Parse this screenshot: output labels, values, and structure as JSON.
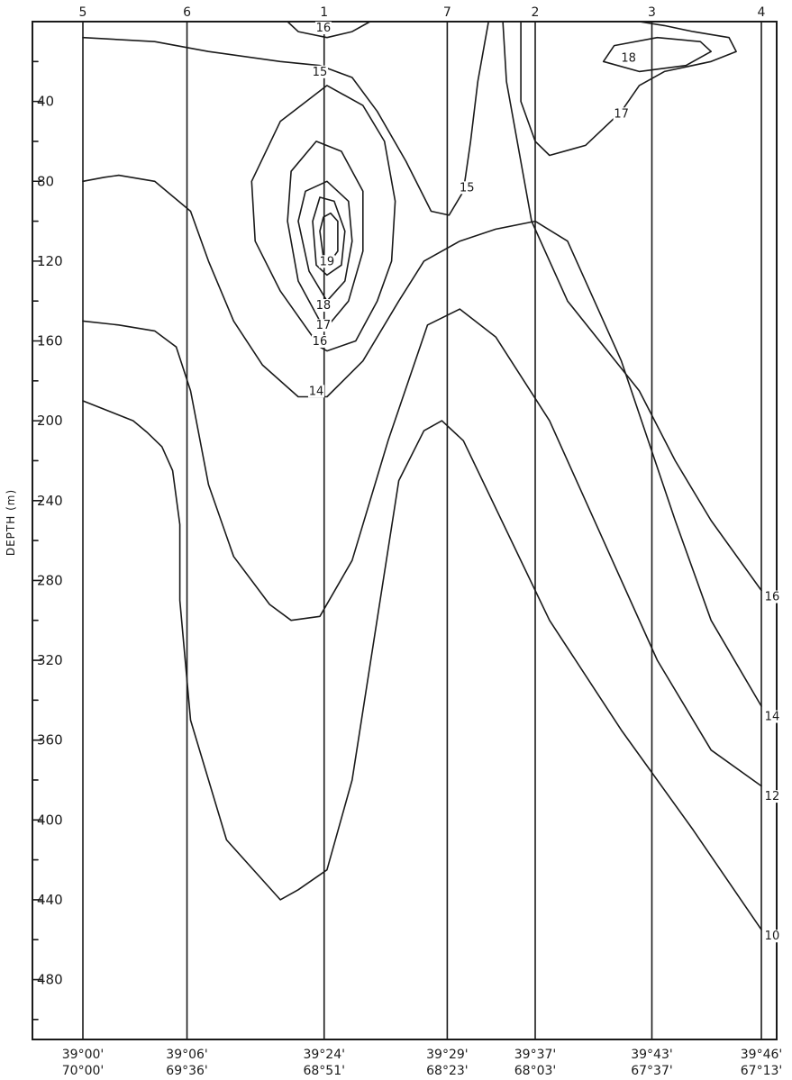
{
  "chart_data": {
    "type": "contour",
    "ylabel": "DEPTH (m)",
    "ylim": [
      0,
      510
    ],
    "yticks_labeled": [
      40,
      80,
      120,
      160,
      200,
      240,
      280,
      320,
      360,
      400,
      440,
      480
    ],
    "yticks_minor_step": 20,
    "stations": [
      {
        "id": "5",
        "lat": "39°00'",
        "lon": "70°00'",
        "xs": 0
      },
      {
        "id": "6",
        "lat": "39°06'",
        "lon": "69°36'",
        "xs": 0.29
      },
      {
        "id": "1",
        "lat": "39°24'",
        "lon": "68°51'",
        "xs": 0.672
      },
      {
        "id": "7",
        "lat": "39°29'",
        "lon": "68°23'",
        "xs": 1.015
      },
      {
        "id": "2",
        "lat": "39°37'",
        "lon": "68°03'",
        "xs": 1.26
      },
      {
        "id": "3",
        "lat": "39°43'",
        "lon": "67°37'",
        "xs": 1.585
      },
      {
        "id": "4",
        "lat": "39°46'",
        "lon": "67°13'",
        "xs": 1.89
      }
    ],
    "top_station_order": [
      "5",
      "6",
      "1",
      "7",
      "2",
      "3",
      "4"
    ],
    "isotherms": [
      {
        "label": "10",
        "points": [
          [
            0,
            190
          ],
          [
            0.14,
            200
          ],
          [
            0.18,
            206
          ],
          [
            0.22,
            213
          ],
          [
            0.25,
            225
          ],
          [
            0.27,
            252
          ],
          [
            0.27,
            290
          ],
          [
            0.3,
            350
          ],
          [
            0.4,
            410
          ],
          [
            0.55,
            440
          ],
          [
            0.6,
            435
          ],
          [
            0.68,
            425
          ],
          [
            0.75,
            380
          ],
          [
            0.88,
            230
          ],
          [
            0.95,
            205
          ],
          [
            1.0,
            200
          ],
          [
            1.06,
            210
          ],
          [
            1.3,
            300
          ],
          [
            1.5,
            355
          ],
          [
            1.7,
            405
          ],
          [
            1.89,
            455
          ]
        ]
      },
      {
        "label": "12",
        "points": [
          [
            0,
            150
          ],
          [
            0.1,
            152
          ],
          [
            0.2,
            155
          ],
          [
            0.26,
            163
          ],
          [
            0.3,
            185
          ],
          [
            0.35,
            232
          ],
          [
            0.42,
            268
          ],
          [
            0.52,
            292
          ],
          [
            0.58,
            300
          ],
          [
            0.66,
            298
          ],
          [
            0.75,
            270
          ],
          [
            0.85,
            210
          ],
          [
            0.96,
            152
          ],
          [
            1.05,
            144
          ],
          [
            1.15,
            158
          ],
          [
            1.3,
            200
          ],
          [
            1.45,
            260
          ],
          [
            1.6,
            320
          ],
          [
            1.75,
            365
          ],
          [
            1.89,
            383
          ]
        ]
      },
      {
        "label": "14",
        "points": [
          [
            0,
            80
          ],
          [
            0.06,
            78
          ],
          [
            0.1,
            77
          ],
          [
            0.2,
            80
          ],
          [
            0.3,
            95
          ],
          [
            0.35,
            120
          ],
          [
            0.42,
            150
          ],
          [
            0.5,
            172
          ],
          [
            0.6,
            188
          ],
          [
            0.68,
            188
          ],
          [
            0.78,
            170
          ],
          [
            0.88,
            140
          ],
          [
            0.95,
            120
          ],
          [
            1.05,
            110
          ],
          [
            1.15,
            104
          ],
          [
            1.26,
            100
          ],
          [
            1.35,
            110
          ],
          [
            1.5,
            170
          ],
          [
            1.65,
            250
          ],
          [
            1.75,
            300
          ],
          [
            1.89,
            343
          ]
        ]
      },
      {
        "label": "14",
        "points": [
          [
            0.48,
            110
          ],
          [
            0.55,
            135
          ],
          [
            0.66,
            163
          ],
          [
            0.68,
            165
          ],
          [
            0.76,
            160
          ],
          [
            0.82,
            140
          ],
          [
            0.86,
            120
          ],
          [
            0.87,
            90
          ],
          [
            0.84,
            60
          ],
          [
            0.78,
            42
          ],
          [
            0.68,
            32
          ],
          [
            0.55,
            50
          ],
          [
            0.47,
            80
          ],
          [
            0.48,
            110
          ]
        ],
        "closed": true
      },
      {
        "label": "16",
        "points": [
          [
            0.57,
            100
          ],
          [
            0.6,
            130
          ],
          [
            0.66,
            150
          ],
          [
            0.68,
            153
          ],
          [
            0.74,
            140
          ],
          [
            0.78,
            115
          ],
          [
            0.78,
            85
          ],
          [
            0.72,
            65
          ],
          [
            0.65,
            60
          ],
          [
            0.58,
            75
          ],
          [
            0.57,
            100
          ]
        ],
        "closed": true
      },
      {
        "label": "17",
        "points": [
          [
            0.6,
            100
          ],
          [
            0.63,
            125
          ],
          [
            0.68,
            140
          ],
          [
            0.73,
            130
          ],
          [
            0.75,
            110
          ],
          [
            0.74,
            90
          ],
          [
            0.68,
            80
          ],
          [
            0.62,
            85
          ],
          [
            0.6,
            100
          ]
        ],
        "closed": true
      },
      {
        "label": "18",
        "points": [
          [
            0.64,
            100
          ],
          [
            0.65,
            122
          ],
          [
            0.68,
            127
          ],
          [
            0.72,
            122
          ],
          [
            0.73,
            105
          ],
          [
            0.7,
            90
          ],
          [
            0.66,
            88
          ],
          [
            0.64,
            100
          ]
        ],
        "closed": true
      },
      {
        "label": "19",
        "points": [
          [
            0.66,
            105
          ],
          [
            0.67,
            118
          ],
          [
            0.69,
            120
          ],
          [
            0.71,
            115
          ],
          [
            0.71,
            100
          ],
          [
            0.69,
            96
          ],
          [
            0.67,
            98
          ],
          [
            0.66,
            105
          ]
        ],
        "closed": true
      },
      {
        "label": "15",
        "points": [
          [
            0,
            8
          ],
          [
            0.2,
            10
          ],
          [
            0.35,
            15
          ],
          [
            0.55,
            20
          ],
          [
            0.66,
            22
          ],
          [
            0.75,
            28
          ],
          [
            0.82,
            45
          ],
          [
            0.9,
            70
          ],
          [
            0.97,
            95
          ],
          [
            1.02,
            97
          ],
          [
            1.06,
            85
          ],
          [
            1.08,
            60
          ],
          [
            1.1,
            30
          ],
          [
            1.12,
            10
          ],
          [
            1.13,
            0
          ]
        ]
      },
      {
        "label": "16",
        "points": [
          [
            0.57,
            0
          ],
          [
            0.6,
            5
          ],
          [
            0.68,
            8
          ],
          [
            0.75,
            5
          ],
          [
            0.8,
            0
          ]
        ]
      },
      {
        "label": "16",
        "points": [
          [
            1.17,
            0
          ],
          [
            1.18,
            30
          ],
          [
            1.25,
            100
          ],
          [
            1.35,
            140
          ],
          [
            1.55,
            185
          ],
          [
            1.65,
            220
          ],
          [
            1.75,
            250
          ],
          [
            1.89,
            285
          ]
        ]
      },
      {
        "label": "17",
        "points": [
          [
            1.22,
            0
          ],
          [
            1.22,
            40
          ],
          [
            1.26,
            60
          ],
          [
            1.3,
            67
          ],
          [
            1.4,
            62
          ],
          [
            1.5,
            45
          ],
          [
            1.55,
            32
          ],
          [
            1.62,
            25
          ],
          [
            1.75,
            20
          ],
          [
            1.82,
            15
          ],
          [
            1.8,
            8
          ],
          [
            1.7,
            5
          ],
          [
            1.62,
            2
          ],
          [
            1.55,
            0
          ]
        ]
      },
      {
        "label": "18",
        "points": [
          [
            1.45,
            20
          ],
          [
            1.55,
            25
          ],
          [
            1.68,
            22
          ],
          [
            1.75,
            15
          ],
          [
            1.72,
            10
          ],
          [
            1.6,
            8
          ],
          [
            1.48,
            12
          ],
          [
            1.45,
            20
          ]
        ],
        "closed": true
      }
    ],
    "contour_labels": [
      {
        "text": "16",
        "xs": 0.67,
        "d": 5
      },
      {
        "text": "15",
        "xs": 0.66,
        "d": 27
      },
      {
        "text": "18",
        "xs": 1.52,
        "d": 20
      },
      {
        "text": "17",
        "xs": 1.5,
        "d": 48
      },
      {
        "text": "15",
        "xs": 1.07,
        "d": 85
      },
      {
        "text": "19",
        "xs": 0.68,
        "d": 122
      },
      {
        "text": "18",
        "xs": 0.67,
        "d": 144
      },
      {
        "text": "17",
        "xs": 0.67,
        "d": 154
      },
      {
        "text": "16",
        "xs": 0.66,
        "d": 162
      },
      {
        "text": "14",
        "xs": 0.65,
        "d": 187
      },
      {
        "text": "16",
        "xs": 1.92,
        "d": 290
      },
      {
        "text": "14",
        "xs": 1.92,
        "d": 350
      },
      {
        "text": "12",
        "xs": 1.92,
        "d": 390
      },
      {
        "text": "10",
        "xs": 1.92,
        "d": 460
      }
    ]
  }
}
